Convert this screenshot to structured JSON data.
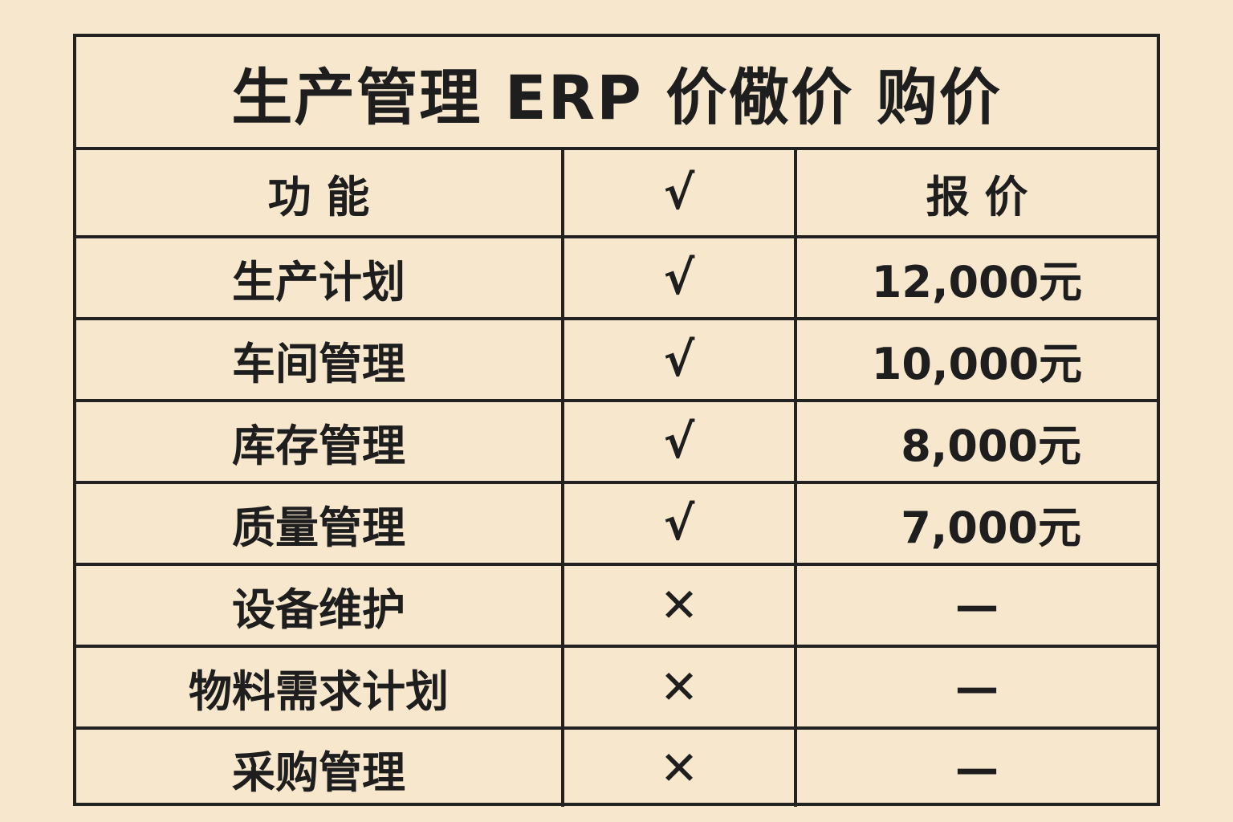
{
  "title": "生产管理 ERP 价儆价 购价",
  "headers": {
    "feature": "功 能",
    "included": "√",
    "price": "报 价"
  },
  "rows": [
    {
      "feature": "生产计划",
      "included": "√",
      "price": "12,000元"
    },
    {
      "feature": "车间管理",
      "included": "√",
      "price": "10,000元"
    },
    {
      "feature": "库存管理",
      "included": "√",
      "price": "8,000元"
    },
    {
      "feature": "质量管理",
      "included": "√",
      "price": "7,000元"
    },
    {
      "feature": "设备维护",
      "included": "✕",
      "price": "—"
    },
    {
      "feature": "物料需求计划",
      "included": "✕",
      "price": "—"
    },
    {
      "feature": "采购管理",
      "included": "✕",
      "price": "—"
    }
  ]
}
